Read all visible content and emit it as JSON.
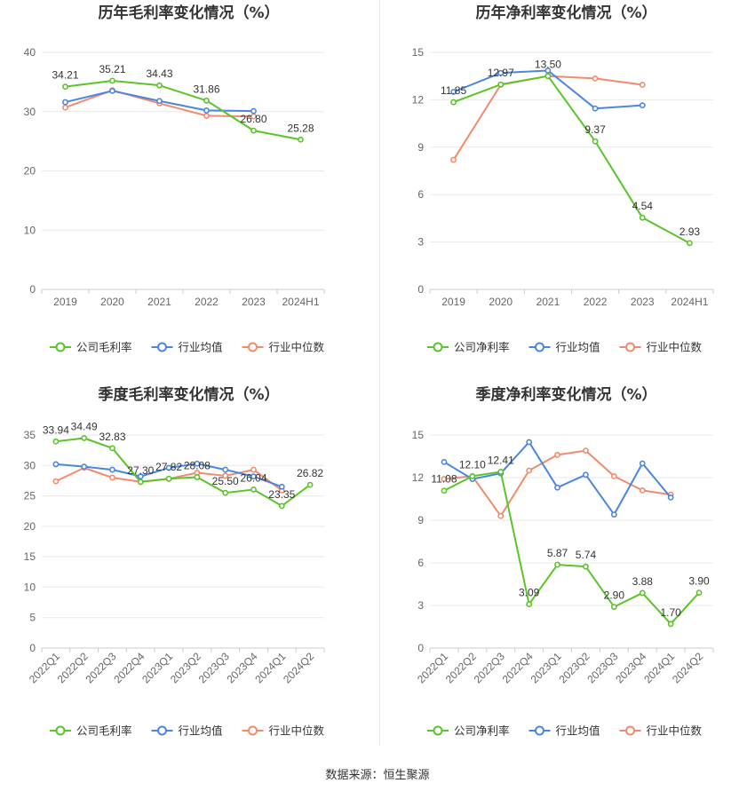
{
  "source": "数据来源：恒生聚源",
  "colors": {
    "company": "#5ac428",
    "industry_avg": "#4a86e0",
    "industry_median": "#f28a6c"
  },
  "charts": [
    {
      "id": "annual-gross",
      "title": "历年毛利率变化情况（%）",
      "type": "line",
      "categories": [
        "2019",
        "2020",
        "2021",
        "2022",
        "2023",
        "2024H1"
      ],
      "ylim": [
        0,
        40
      ],
      "yticks": [
        "0",
        "10",
        "20",
        "30",
        "40"
      ],
      "series": [
        {
          "name": "公司毛利率",
          "key": "company",
          "values": [
            34.21,
            35.21,
            34.43,
            31.86,
            26.8,
            25.28
          ],
          "labels": [
            "34.21",
            "35.21",
            "34.43",
            "31.86",
            "26.80",
            "25.28"
          ]
        },
        {
          "name": "行业均值",
          "key": "industry_avg",
          "values": [
            31.6,
            33.5,
            31.8,
            30.2,
            30.1,
            null
          ]
        },
        {
          "name": "行业中位数",
          "key": "industry_median",
          "values": [
            30.7,
            33.6,
            31.4,
            29.3,
            29.2,
            null
          ]
        }
      ]
    },
    {
      "id": "annual-net",
      "title": "历年净利率变化情况（%）",
      "type": "line",
      "categories": [
        "2019",
        "2020",
        "2021",
        "2022",
        "2023",
        "2024H1"
      ],
      "ylim": [
        0,
        15
      ],
      "yticks": [
        "0",
        "3",
        "6",
        "9",
        "12",
        "15"
      ],
      "series": [
        {
          "name": "公司净利率",
          "key": "company",
          "values": [
            11.85,
            12.97,
            13.5,
            9.37,
            4.54,
            2.93
          ],
          "labels": [
            "11.85",
            "12.97",
            "13.50",
            "9.37",
            "4.54",
            "2.93"
          ]
        },
        {
          "name": "行业均值",
          "key": "industry_avg",
          "values": [
            12.5,
            13.7,
            13.85,
            11.45,
            11.65,
            null
          ]
        },
        {
          "name": "行业中位数",
          "key": "industry_median",
          "values": [
            8.2,
            12.95,
            13.5,
            13.35,
            12.95,
            null
          ]
        }
      ]
    },
    {
      "id": "quarterly-gross",
      "title": "季度毛利率变化情况（%）",
      "type": "line",
      "categories": [
        "2022Q1",
        "2022Q2",
        "2022Q3",
        "2022Q4",
        "2023Q1",
        "2023Q2",
        "2023Q3",
        "2023Q4",
        "2024Q1",
        "2024Q2"
      ],
      "ylim": [
        0,
        35
      ],
      "yticks": [
        "0",
        "5",
        "10",
        "15",
        "20",
        "25",
        "30",
        "35"
      ],
      "series": [
        {
          "name": "公司毛利率",
          "key": "company",
          "values": [
            33.94,
            34.49,
            32.83,
            27.3,
            27.82,
            28.08,
            25.5,
            26.04,
            23.35,
            26.82
          ],
          "labels": [
            "33.94",
            "34.49",
            "32.83",
            "27.30",
            "27.82",
            "28.08",
            "25.50",
            "26.04",
            "23.35",
            "26.82"
          ]
        },
        {
          "name": "行业均值",
          "key": "industry_avg",
          "values": [
            30.2,
            29.8,
            29.3,
            28.2,
            29.6,
            30.3,
            29.3,
            28.2,
            26.5,
            null
          ]
        },
        {
          "name": "行业中位数",
          "key": "industry_median",
          "values": [
            27.4,
            29.6,
            28.0,
            27.3,
            27.8,
            28.8,
            28.3,
            29.3,
            25.9,
            null
          ]
        }
      ]
    },
    {
      "id": "quarterly-net",
      "title": "季度净利率变化情况（%）",
      "type": "line",
      "categories": [
        "2022Q1",
        "2022Q2",
        "2022Q3",
        "2022Q4",
        "2023Q1",
        "2023Q2",
        "2023Q3",
        "2023Q4",
        "2024Q1",
        "2024Q2"
      ],
      "ylim": [
        0,
        15
      ],
      "yticks": [
        "0",
        "3",
        "6",
        "9",
        "12",
        "15"
      ],
      "series": [
        {
          "name": "公司净利率",
          "key": "company",
          "values": [
            11.08,
            12.1,
            12.41,
            3.09,
            5.87,
            5.74,
            2.9,
            3.88,
            1.7,
            3.9
          ],
          "labels": [
            "11.08",
            "12.10",
            "12.41",
            "3.09",
            "5.87",
            "5.74",
            "2.90",
            "3.88",
            "1.70",
            "3.90"
          ]
        },
        {
          "name": "行业均值",
          "key": "industry_avg",
          "values": [
            13.1,
            11.9,
            12.3,
            14.5,
            11.3,
            12.2,
            9.4,
            13.0,
            10.6,
            null
          ]
        },
        {
          "name": "行业中位数",
          "key": "industry_median",
          "values": [
            11.9,
            12.1,
            9.3,
            12.5,
            13.6,
            13.9,
            12.1,
            11.1,
            10.8,
            null
          ]
        }
      ]
    }
  ]
}
